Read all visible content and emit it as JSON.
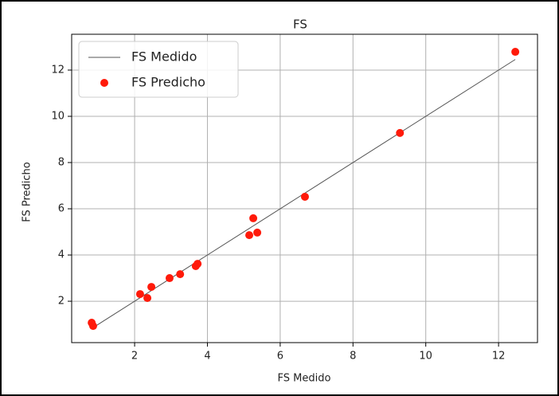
{
  "chart_data": {
    "type": "scatter",
    "title": "FS",
    "x_label": "FS Medido",
    "y_label": "FS Predicho",
    "x": [
      0.82,
      0.86,
      2.15,
      2.35,
      2.46,
      2.96,
      3.25,
      3.68,
      3.73,
      5.15,
      5.26,
      5.37,
      6.68,
      9.29,
      12.46
    ],
    "series": [
      {
        "name": "FS Medido",
        "kind": "line",
        "color": "#555555",
        "values": [
          0.82,
          0.86,
          2.15,
          2.35,
          2.46,
          2.96,
          3.25,
          3.68,
          3.73,
          5.15,
          5.26,
          5.37,
          6.68,
          9.29,
          12.46
        ]
      },
      {
        "name": "FS Predicho",
        "kind": "points",
        "color": "#ff1a0a",
        "values": [
          1.07,
          0.93,
          2.31,
          2.14,
          2.62,
          3.0,
          3.17,
          3.52,
          3.62,
          4.86,
          5.59,
          4.97,
          6.52,
          9.28,
          12.79
        ]
      }
    ],
    "xlim": [
      0.27,
      13.07
    ],
    "ylim": [
      0.21,
      13.55
    ],
    "xticks": [
      2,
      4,
      6,
      8,
      10,
      12
    ],
    "yticks": [
      2,
      4,
      6,
      8,
      10,
      12
    ],
    "grid": true,
    "legend": "upper left"
  }
}
